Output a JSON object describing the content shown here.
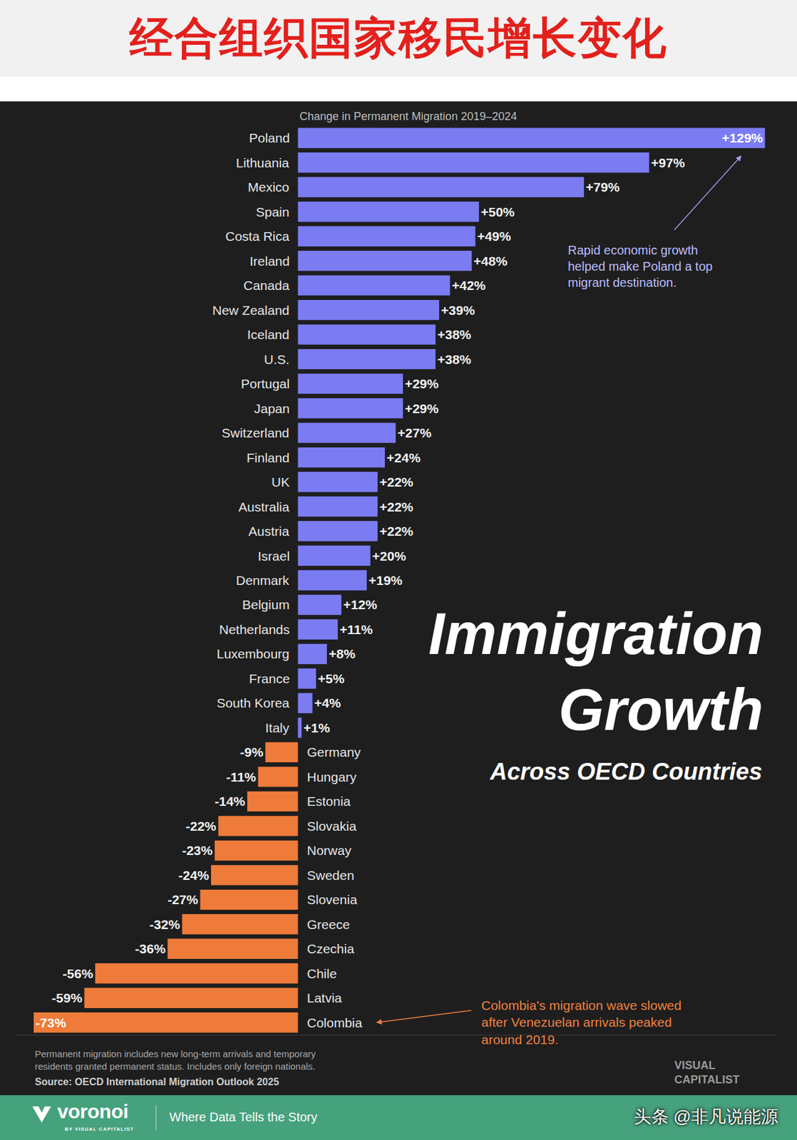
{
  "header": {
    "title": "经合组织国家移民增长变化"
  },
  "chart_data": {
    "type": "bar",
    "orientation": "horizontal",
    "title": "Immigration Growth",
    "subtitle": "Across OECD Countries",
    "xlabel": "Change in Permanent Migration 2019–2024",
    "categories": [
      "Poland",
      "Lithuania",
      "Mexico",
      "Spain",
      "Costa Rica",
      "Ireland",
      "Canada",
      "New Zealand",
      "Iceland",
      "U.S.",
      "Portugal",
      "Japan",
      "Switzerland",
      "Finland",
      "UK",
      "Australia",
      "Austria",
      "Israel",
      "Denmark",
      "Belgium",
      "Netherlands",
      "Luxembourg",
      "France",
      "South Korea",
      "Italy",
      "Germany",
      "Hungary",
      "Estonia",
      "Slovakia",
      "Norway",
      "Sweden",
      "Slovenia",
      "Greece",
      "Czechia",
      "Chile",
      "Latvia",
      "Colombia"
    ],
    "values": [
      129,
      97,
      79,
      50,
      49,
      48,
      42,
      39,
      38,
      38,
      29,
      29,
      27,
      24,
      22,
      22,
      22,
      20,
      19,
      12,
      11,
      8,
      5,
      4,
      1,
      -9,
      -11,
      -14,
      -22,
      -23,
      -24,
      -27,
      -32,
      -36,
      -56,
      -59,
      -73
    ],
    "value_labels": [
      "+129%",
      "+97%",
      "+79%",
      "+50%",
      "+49%",
      "+48%",
      "+42%",
      "+39%",
      "+38%",
      "+38%",
      "+29%",
      "+29%",
      "+27%",
      "+24%",
      "+22%",
      "+22%",
      "+22%",
      "+20%",
      "+19%",
      "+12%",
      "+11%",
      "+8%",
      "+5%",
      "+4%",
      "+1%",
      "-9%",
      "-11%",
      "-14%",
      "-22%",
      "-23%",
      "-24%",
      "-27%",
      "-32%",
      "-36%",
      "-56%",
      "-59%",
      "-73%"
    ],
    "colors": [
      "#7b7cf2",
      "#7b7cf2",
      "#7b7cf2",
      "#7b7cf2",
      "#7b7cf2",
      "#7b7cf2",
      "#7b7cf2",
      "#7b7cf2",
      "#7b7cf2",
      "#7b7cf2",
      "#7b7cf2",
      "#7b7cf2",
      "#7b7cf2",
      "#7b7cf2",
      "#7b7cf2",
      "#7b7cf2",
      "#7b7cf2",
      "#7b7cf2",
      "#7b7cf2",
      "#7b7cf2",
      "#7b7cf2",
      "#7b7cf2",
      "#7b7cf2",
      "#7b7cf2",
      "#7b7cf2",
      "#ee7b3a",
      "#ee7b3a",
      "#ee7b3a",
      "#ee7b3a",
      "#ee7b3a",
      "#ee7b3a",
      "#ee7b3a",
      "#ee7b3a",
      "#ee7b3a",
      "#ee7b3a",
      "#ee7b3a",
      "#ee7b3a"
    ],
    "xlim": [
      -78,
      132
    ],
    "tick_labels": false,
    "data_labels": true,
    "grid": false,
    "annotations": [
      {
        "text": "Rapid economic growth helped make Poland a top migrant destination.",
        "category": "Poland"
      },
      {
        "text": "Colombia's migration wave slowed after Venezuelan arrivals peaked around 2019.",
        "category": "Colombia"
      }
    ],
    "note": "Permanent migration includes new long-term arrivals and temporary residents granted permanent status. Includes only foreign nationals.",
    "source": "Source: OECD International Migration Outlook 2025"
  },
  "branding": {
    "logo": "VISUAL CAPITALIST"
  },
  "footer": {
    "brand": "voronoi",
    "brand_sub": "BY VISUAL CAPITALIST",
    "tagline": "Where Data Tells the Story",
    "watermark": "头条 @非凡说能源"
  }
}
